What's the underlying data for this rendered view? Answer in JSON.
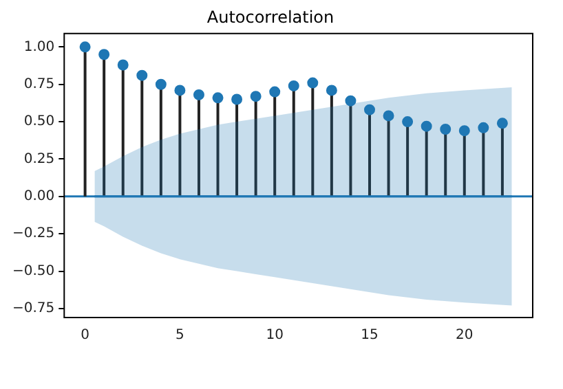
{
  "chart_data": {
    "type": "lollipop",
    "title": "Autocorrelation",
    "x": [
      0,
      1,
      2,
      3,
      4,
      5,
      6,
      7,
      8,
      9,
      10,
      11,
      12,
      13,
      14,
      15,
      16,
      17,
      18,
      19,
      20,
      21,
      22
    ],
    "series": [
      {
        "color": "#1f77b4",
        "values": [
          1.0,
          0.95,
          0.88,
          0.81,
          0.75,
          0.71,
          0.68,
          0.66,
          0.65,
          0.67,
          0.7,
          0.74,
          0.76,
          0.71,
          0.64,
          0.58,
          0.54,
          0.5,
          0.47,
          0.45,
          0.44,
          0.46,
          0.49
        ]
      },
      {
        "type": "line",
        "marker": "none",
        "color": "#1f77b4",
        "x": [
          0.5,
          1,
          2,
          3,
          4,
          5,
          6,
          7,
          8,
          9,
          10,
          12,
          14,
          16,
          18,
          20,
          22.5
        ],
        "values": [
          0,
          0,
          0,
          0,
          0,
          0,
          0,
          0,
          0,
          0,
          0,
          0,
          0,
          0,
          0,
          0,
          0
        ],
        "upper": [
          0.17,
          0.2,
          0.27,
          0.33,
          0.38,
          0.42,
          0.45,
          0.48,
          0.5,
          0.52,
          0.54,
          0.58,
          0.62,
          0.66,
          0.69,
          0.71,
          0.73
        ],
        "lower": [
          -0.17,
          -0.2,
          -0.27,
          -0.33,
          -0.38,
          -0.42,
          -0.45,
          -0.48,
          -0.5,
          -0.52,
          -0.54,
          -0.58,
          -0.62,
          -0.66,
          -0.69,
          -0.71,
          -0.73
        ]
      }
    ],
    "marker": "circle",
    "grid": false,
    "legend": false,
    "xlim": [
      -1.1,
      23.6
    ],
    "xticks": [
      0,
      5,
      10,
      15,
      20
    ],
    "ylim": [
      -0.81,
      1.09
    ],
    "yticks": [
      {
        "value": -0.75,
        "label": "−0.75"
      },
      {
        "value": -0.5,
        "label": "−0.50"
      },
      {
        "value": -0.25,
        "label": "−0.25"
      },
      {
        "value": 0,
        "label": "0.00"
      },
      {
        "value": 0.25,
        "label": "0.25"
      },
      {
        "value": 0.5,
        "label": "0.50"
      },
      {
        "value": 0.75,
        "label": "0.75"
      },
      {
        "value": 1,
        "label": "1.00"
      }
    ],
    "ref_lines": [
      {
        "axis": "y",
        "value": 0,
        "color": "#1f77b4"
      }
    ]
  }
}
